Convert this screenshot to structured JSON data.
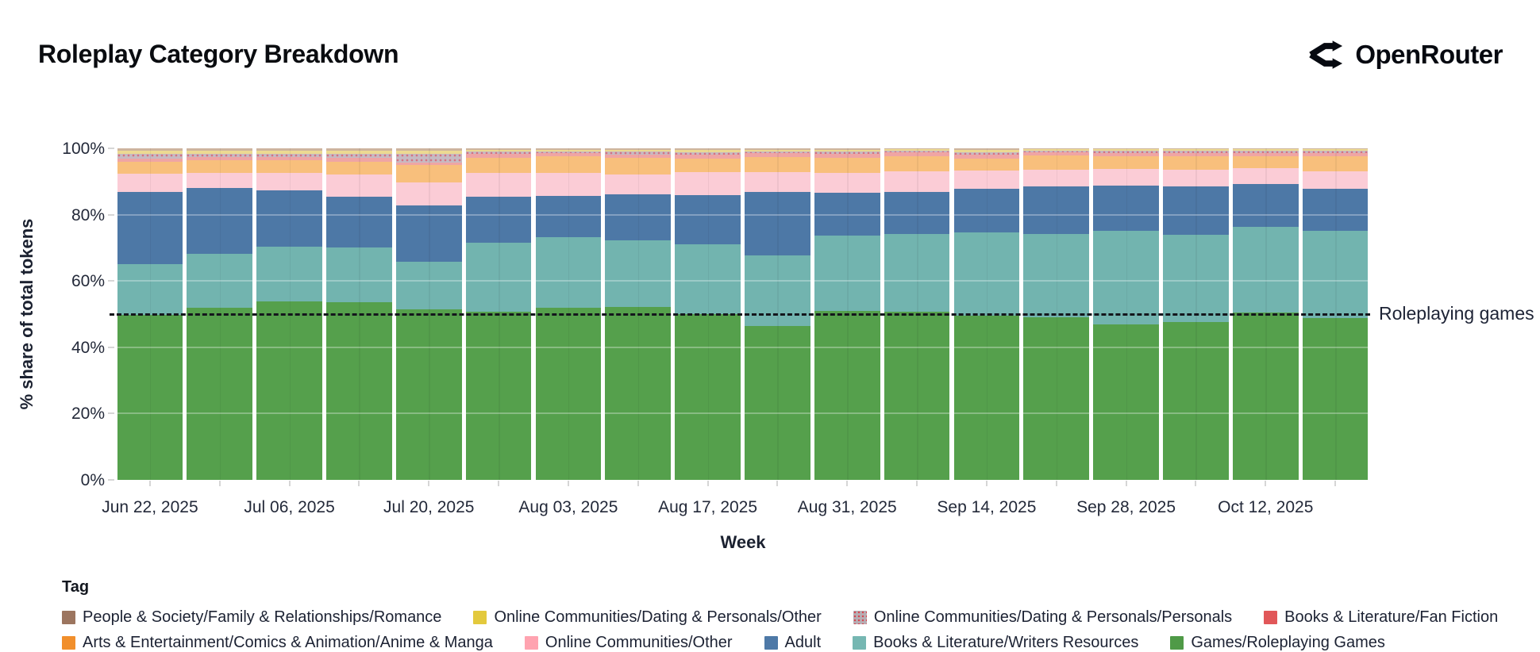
{
  "title": "Roleplay Category Breakdown",
  "brand": {
    "name": "OpenRouter",
    "icon": "openrouter-fork-icon",
    "color": "#060910"
  },
  "chart_data": {
    "type": "bar",
    "subtype": "stacked_percent_weekly",
    "title": "Roleplay Category Breakdown",
    "xlabel": "Week",
    "ylabel": "% share of total tokens",
    "ylim": [
      0,
      100
    ],
    "y_tick_percents": [
      0,
      20,
      40,
      60,
      80,
      100
    ],
    "y_tick_labels": [
      "0%",
      "20%",
      "40%",
      "60%",
      "80%",
      "100%"
    ],
    "x_tick_labels": [
      "Jun 22, 2025",
      "Jul 06, 2025",
      "Jul 20, 2025",
      "Aug 03, 2025",
      "Aug 17, 2025",
      "Aug 31, 2025",
      "Sep 14, 2025",
      "Sep 28, 2025",
      "Oct 12, 2025"
    ],
    "x_label_every_n_bars": 2,
    "grid": "white-overlay-on-bars",
    "legend_position": "bottom",
    "legend_title": "Tag",
    "annotation": {
      "label": "Roleplaying games",
      "y_percent": 50,
      "line_style": "dashed",
      "line_color": "#14161c"
    },
    "categories": [
      "Jun 22, 2025",
      "Jun 29, 2025",
      "Jul 06, 2025",
      "Jul 13, 2025",
      "Jul 20, 2025",
      "Jul 27, 2025",
      "Aug 03, 2025",
      "Aug 10, 2025",
      "Aug 17, 2025",
      "Aug 24, 2025",
      "Aug 31, 2025",
      "Sep 07, 2025",
      "Sep 14, 2025",
      "Sep 21, 2025",
      "Sep 28, 2025",
      "Oct 05, 2025",
      "Oct 12, 2025",
      "Oct 19, 2025"
    ],
    "series": [
      {
        "name": "Games/Roleplaying Games",
        "bar_color": "#55a04c",
        "legend_color": "#4f9a47",
        "pattern": false,
        "values": [
          49.8,
          51.8,
          53.9,
          53.6,
          51.5,
          50.6,
          52.0,
          52.2,
          49.9,
          46.4,
          51.0,
          50.6,
          49.6,
          49.0,
          46.8,
          47.6,
          50.4,
          48.8
        ]
      },
      {
        "name": "Books & Literature/Writers Resources",
        "bar_color": "#72b4af",
        "legend_color": "#76b7b2",
        "pattern": false,
        "values": [
          15.2,
          16.3,
          16.5,
          16.5,
          14.2,
          20.9,
          21.1,
          20.1,
          21.2,
          21.3,
          22.7,
          23.5,
          25.1,
          25.1,
          28.3,
          26.3,
          25.9,
          26.3
        ]
      },
      {
        "name": "Adult",
        "bar_color": "#4d78a6",
        "legend_color": "#4e79a7",
        "pattern": false,
        "values": [
          21.9,
          20.0,
          16.9,
          15.2,
          17.0,
          13.8,
          12.6,
          13.8,
          14.8,
          19.2,
          12.8,
          12.8,
          13.2,
          14.4,
          13.7,
          14.6,
          12.9,
          12.8
        ]
      },
      {
        "name": "Online Communities/Other",
        "bar_color": "#fbccd6",
        "legend_color": "#ffa3b0",
        "pattern": false,
        "values": [
          5.4,
          4.4,
          5.2,
          6.7,
          7.0,
          7.2,
          7.0,
          6.1,
          7.0,
          6.0,
          6.0,
          6.1,
          5.3,
          5.0,
          4.9,
          5.0,
          4.8,
          5.2
        ]
      },
      {
        "name": "Arts & Entertainment/Comics & Animation/Anime & Manga",
        "bar_color": "#f8bf7c",
        "legend_color": "#f18f2c",
        "pattern": false,
        "values": [
          3.7,
          3.8,
          3.8,
          4.0,
          5.2,
          4.6,
          4.8,
          4.9,
          4.0,
          4.5,
          4.6,
          4.7,
          3.6,
          4.3,
          3.8,
          4.0,
          3.6,
          4.4
        ]
      },
      {
        "name": "Books & Literature/Fan Fiction",
        "bar_color": "#efa5a4",
        "legend_color": "#e15759",
        "pattern": false,
        "values": [
          1.0,
          1.0,
          1.0,
          1.1,
          0.9,
          1.2,
          1.0,
          1.1,
          1.2,
          1.1,
          1.2,
          1.0,
          1.2,
          1.0,
          1.1,
          1.1,
          1.0,
          1.1
        ]
      },
      {
        "name": "Online Communities/Dating & Personals/Personals",
        "bar_color": "#c6bac2",
        "legend_color": "#b7aeb4",
        "pattern": true,
        "values": [
          1.3,
          1.0,
          1.1,
          1.3,
          2.6,
          0.7,
          0.6,
          0.8,
          0.8,
          0.6,
          0.7,
          0.5,
          0.9,
          0.5,
          0.6,
          0.6,
          0.6,
          0.6
        ]
      },
      {
        "name": "Online Communities/Dating & Personals/Other",
        "bar_color": "#ecd992",
        "legend_color": "#e3c93d",
        "pattern": false,
        "values": [
          0.9,
          0.9,
          0.8,
          0.8,
          1.0,
          0.6,
          0.5,
          0.6,
          0.7,
          0.5,
          0.6,
          0.5,
          0.7,
          0.4,
          0.5,
          0.5,
          0.5,
          0.5
        ]
      },
      {
        "name": "People & Society/Family & Relationships/Romance",
        "bar_color": "#cdb49e",
        "legend_color": "#9c755f",
        "pattern": false,
        "values": [
          0.8,
          0.8,
          0.8,
          0.8,
          0.6,
          0.4,
          0.5,
          0.4,
          0.4,
          0.4,
          0.4,
          0.3,
          0.4,
          0.3,
          0.3,
          0.3,
          0.3,
          0.3
        ]
      }
    ],
    "legend_rows": [
      [
        8,
        7,
        6,
        5
      ],
      [
        4,
        3,
        2,
        1,
        0
      ]
    ]
  }
}
